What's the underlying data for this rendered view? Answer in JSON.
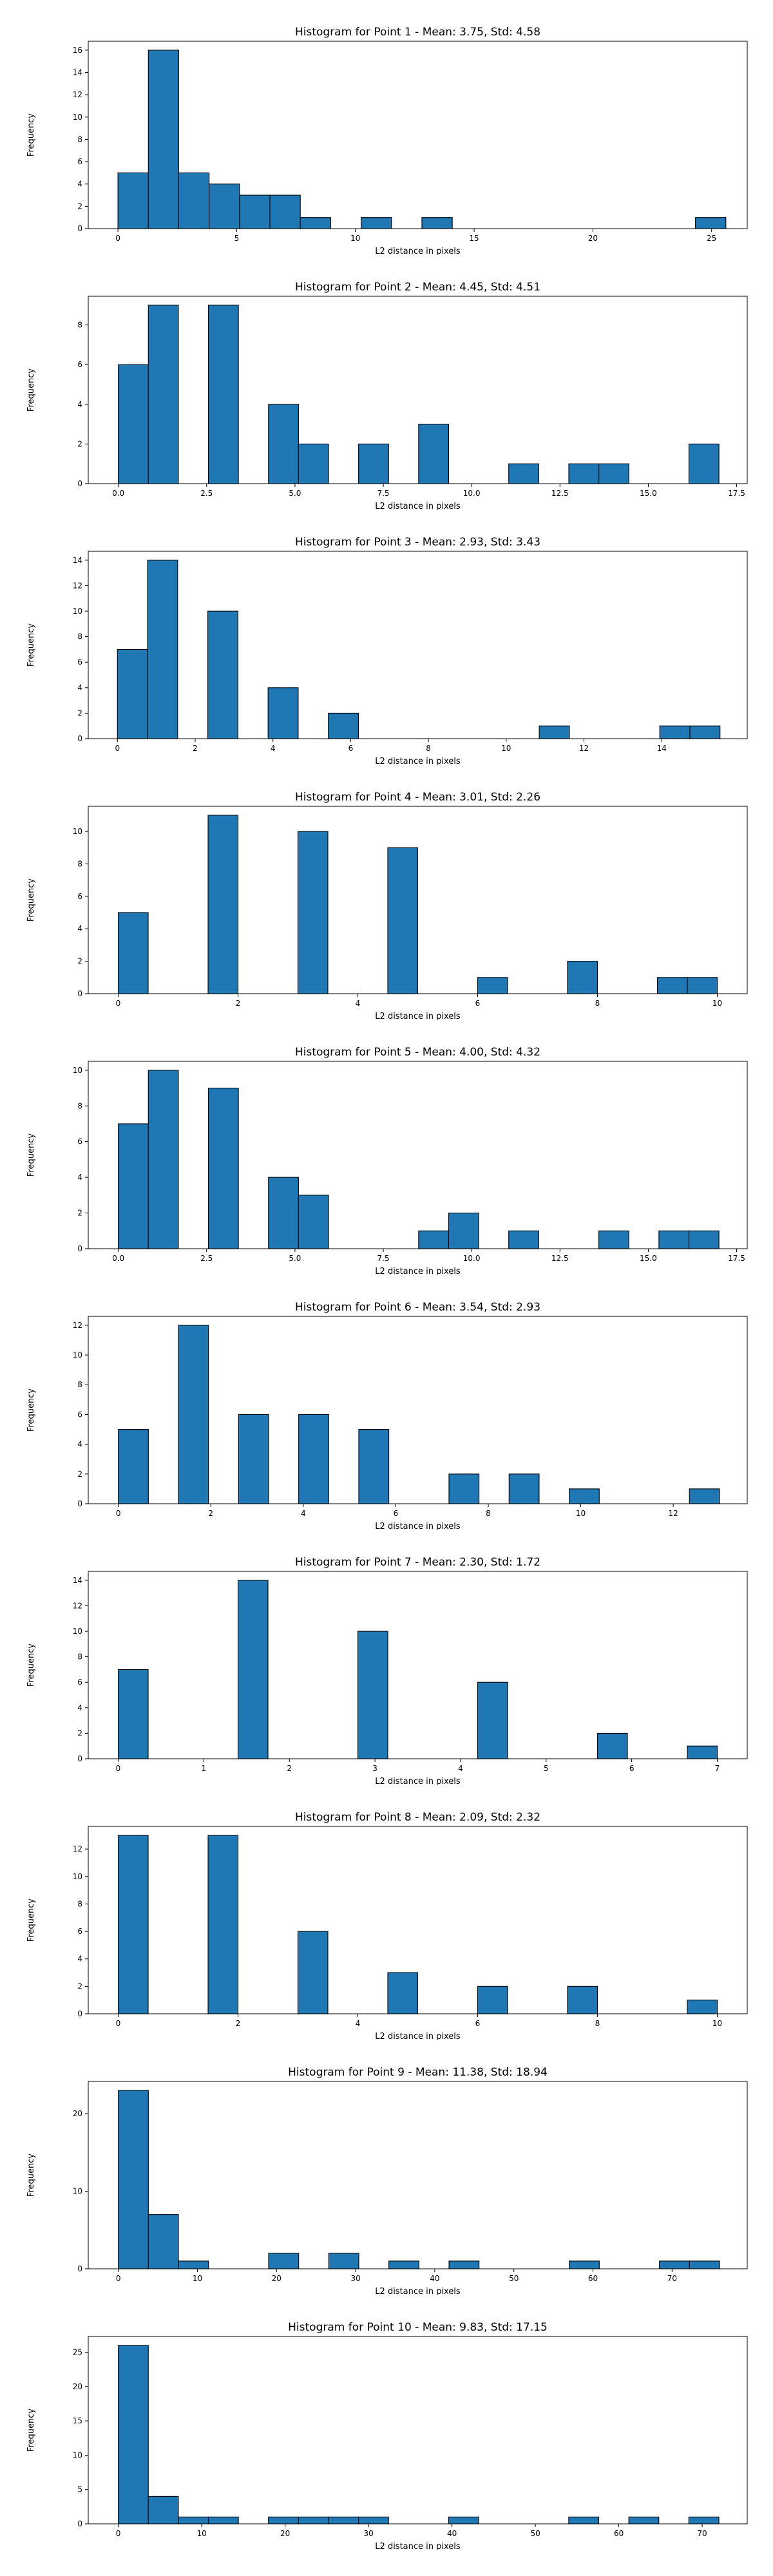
{
  "colors": {
    "bar": "#1f77b4",
    "edge": "#000000"
  },
  "chart_data": [
    {
      "type": "bar",
      "title": "Histogram for Point 1 - Mean: 3.75, Std: 4.58",
      "xlabel": "L2 distance in pixels",
      "ylabel": "Frequency",
      "xlim": [
        -1.25,
        26.5
      ],
      "ylim": [
        0,
        16.8
      ],
      "xticks": [
        0,
        5,
        10,
        15,
        20,
        25
      ],
      "xtick_labels": [
        "0",
        "5",
        "10",
        "15",
        "20",
        "25"
      ],
      "yticks": [
        0,
        2,
        4,
        6,
        8,
        10,
        12,
        14,
        16
      ],
      "bin_edges": [
        0.0,
        1.28,
        2.56,
        3.84,
        5.12,
        6.4,
        7.68,
        8.96,
        10.24,
        11.52,
        12.8,
        14.08,
        15.36,
        16.64,
        17.92,
        19.2,
        20.48,
        21.76,
        23.04,
        24.32,
        25.6
      ],
      "values": [
        5,
        16,
        5,
        4,
        3,
        3,
        1,
        0,
        1,
        0,
        1,
        0,
        0,
        0,
        0,
        0,
        0,
        0,
        0,
        1
      ]
    },
    {
      "type": "bar",
      "title": "Histogram for Point 2 - Mean: 4.45, Std: 4.51",
      "xlabel": "L2 distance in pixels",
      "ylabel": "Frequency",
      "xlim": [
        -0.85,
        17.8
      ],
      "ylim": [
        0,
        9.45
      ],
      "xticks": [
        0,
        2.5,
        5,
        7.5,
        10,
        12.5,
        15,
        17.5
      ],
      "xtick_labels": [
        "0.0",
        "2.5",
        "5.0",
        "7.5",
        "10.0",
        "12.5",
        "15.0",
        "17.5"
      ],
      "yticks": [
        0,
        2,
        4,
        6,
        8
      ],
      "bin_edges": [
        0.0,
        0.85,
        1.7,
        2.55,
        3.4,
        4.25,
        5.1,
        5.95,
        6.8,
        7.65,
        8.5,
        9.35,
        10.2,
        11.05,
        11.9,
        12.75,
        13.6,
        14.45,
        15.3,
        16.15,
        17.0
      ],
      "values": [
        6,
        9,
        0,
        9,
        0,
        4,
        2,
        0,
        2,
        0,
        3,
        0,
        0,
        1,
        0,
        1,
        1,
        0,
        0,
        2
      ]
    },
    {
      "type": "bar",
      "title": "Histogram for Point 3 - Mean: 2.93, Std: 3.43",
      "xlabel": "L2 distance in pixels",
      "ylabel": "Frequency",
      "xlim": [
        -0.75,
        16.2
      ],
      "ylim": [
        0,
        14.7
      ],
      "xticks": [
        0,
        2,
        4,
        6,
        8,
        10,
        12,
        14
      ],
      "xtick_labels": [
        "0",
        "2",
        "4",
        "6",
        "8",
        "10",
        "12",
        "14"
      ],
      "yticks": [
        0,
        2,
        4,
        6,
        8,
        10,
        12,
        14
      ],
      "bin_edges": [
        0.0,
        0.775,
        1.55,
        2.325,
        3.1,
        3.875,
        4.65,
        5.425,
        6.2,
        6.975,
        7.75,
        8.525,
        9.3,
        10.075,
        10.85,
        11.625,
        12.4,
        13.175,
        13.95,
        14.725,
        15.5
      ],
      "values": [
        7,
        14,
        0,
        10,
        0,
        4,
        0,
        2,
        0,
        0,
        0,
        0,
        0,
        0,
        1,
        0,
        0,
        0,
        1,
        1
      ]
    },
    {
      "type": "bar",
      "title": "Histogram for Point 4 - Mean: 3.01, Std: 2.26",
      "xlabel": "L2 distance in pixels",
      "ylabel": "Frequency",
      "xlim": [
        -0.5,
        10.5
      ],
      "ylim": [
        0,
        11.55
      ],
      "xticks": [
        0,
        2,
        4,
        6,
        8,
        10
      ],
      "xtick_labels": [
        "0",
        "2",
        "4",
        "6",
        "8",
        "10"
      ],
      "yticks": [
        0,
        2,
        4,
        6,
        8,
        10
      ],
      "bin_edges": [
        0.0,
        0.5,
        1.0,
        1.5,
        2.0,
        2.5,
        3.0,
        3.5,
        4.0,
        4.5,
        5.0,
        5.5,
        6.0,
        6.5,
        7.0,
        7.5,
        8.0,
        8.5,
        9.0,
        9.5,
        10.0
      ],
      "values": [
        5,
        0,
        0,
        11,
        0,
        0,
        10,
        0,
        0,
        9,
        0,
        0,
        1,
        0,
        0,
        2,
        0,
        0,
        1,
        1
      ]
    },
    {
      "type": "bar",
      "title": "Histogram for Point 5 - Mean: 4.00, Std: 4.32",
      "xlabel": "L2 distance in pixels",
      "ylabel": "Frequency",
      "xlim": [
        -0.85,
        17.8
      ],
      "ylim": [
        0,
        10.5
      ],
      "xticks": [
        0,
        2.5,
        5,
        7.5,
        10,
        12.5,
        15,
        17.5
      ],
      "xtick_labels": [
        "0.0",
        "2.5",
        "5.0",
        "7.5",
        "10.0",
        "12.5",
        "15.0",
        "17.5"
      ],
      "yticks": [
        0,
        2,
        4,
        6,
        8,
        10
      ],
      "bin_edges": [
        0.0,
        0.85,
        1.7,
        2.55,
        3.4,
        4.25,
        5.1,
        5.95,
        6.8,
        7.65,
        8.5,
        9.35,
        10.2,
        11.05,
        11.9,
        12.75,
        13.6,
        14.45,
        15.3,
        16.15,
        17.0
      ],
      "values": [
        7,
        10,
        0,
        9,
        0,
        4,
        3,
        0,
        0,
        0,
        1,
        2,
        0,
        1,
        0,
        0,
        1,
        0,
        1,
        1
      ]
    },
    {
      "type": "bar",
      "title": "Histogram for Point 6 - Mean: 3.54, Std: 2.93",
      "xlabel": "L2 distance in pixels",
      "ylabel": "Frequency",
      "xlim": [
        -0.65,
        13.6
      ],
      "ylim": [
        0,
        12.6
      ],
      "xticks": [
        0,
        2,
        4,
        6,
        8,
        10,
        12
      ],
      "xtick_labels": [
        "0",
        "2",
        "4",
        "6",
        "8",
        "10",
        "12"
      ],
      "yticks": [
        0,
        2,
        4,
        6,
        8,
        10,
        12
      ],
      "bin_edges": [
        0.0,
        0.65,
        1.3,
        1.95,
        2.6,
        3.25,
        3.9,
        4.55,
        5.2,
        5.85,
        6.5,
        7.15,
        7.8,
        8.45,
        9.1,
        9.75,
        10.4,
        11.05,
        11.7,
        12.35,
        13.0
      ],
      "values": [
        5,
        0,
        12,
        0,
        6,
        0,
        6,
        0,
        5,
        0,
        0,
        2,
        0,
        2,
        0,
        1,
        0,
        0,
        0,
        1
      ]
    },
    {
      "type": "bar",
      "title": "Histogram for Point 7 - Mean: 2.30, Std: 1.72",
      "xlabel": "L2 distance in pixels",
      "ylabel": "Frequency",
      "xlim": [
        -0.35,
        7.35
      ],
      "ylim": [
        0,
        14.7
      ],
      "xticks": [
        0,
        1,
        2,
        3,
        4,
        5,
        6,
        7
      ],
      "xtick_labels": [
        "0",
        "1",
        "2",
        "3",
        "4",
        "5",
        "6",
        "7"
      ],
      "yticks": [
        0,
        2,
        4,
        6,
        8,
        10,
        12,
        14
      ],
      "bin_edges": [
        0.0,
        0.35,
        0.7,
        1.05,
        1.4,
        1.75,
        2.1,
        2.45,
        2.8,
        3.15,
        3.5,
        3.85,
        4.2,
        4.55,
        4.9,
        5.25,
        5.6,
        5.95,
        6.3,
        6.65,
        7.0
      ],
      "values": [
        7,
        0,
        0,
        0,
        14,
        0,
        0,
        0,
        10,
        0,
        0,
        0,
        6,
        0,
        0,
        0,
        2,
        0,
        0,
        1
      ]
    },
    {
      "type": "bar",
      "title": "Histogram for Point 8 - Mean: 2.09, Std: 2.32",
      "xlabel": "L2 distance in pixels",
      "ylabel": "Frequency",
      "xlim": [
        -0.5,
        10.5
      ],
      "ylim": [
        0,
        13.65
      ],
      "xticks": [
        0,
        2,
        4,
        6,
        8,
        10
      ],
      "xtick_labels": [
        "0",
        "2",
        "4",
        "6",
        "8",
        "10"
      ],
      "yticks": [
        0,
        2,
        4,
        6,
        8,
        10,
        12
      ],
      "bin_edges": [
        0.0,
        0.5,
        1.0,
        1.5,
        2.0,
        2.5,
        3.0,
        3.5,
        4.0,
        4.5,
        5.0,
        5.5,
        6.0,
        6.5,
        7.0,
        7.5,
        8.0,
        8.5,
        9.0,
        9.5,
        10.0
      ],
      "values": [
        13,
        0,
        0,
        13,
        0,
        0,
        6,
        0,
        0,
        3,
        0,
        0,
        2,
        0,
        0,
        2,
        0,
        0,
        0,
        1
      ]
    },
    {
      "type": "bar",
      "title": "Histogram for Point 9 - Mean: 11.38, Std: 18.94",
      "xlabel": "L2 distance in pixels",
      "ylabel": "Frequency",
      "xlim": [
        -3.8,
        79.5
      ],
      "ylim": [
        0,
        24.15
      ],
      "xticks": [
        0,
        10,
        20,
        30,
        40,
        50,
        60,
        70
      ],
      "xtick_labels": [
        "0",
        "10",
        "20",
        "30",
        "40",
        "50",
        "60",
        "70"
      ],
      "yticks": [
        0,
        10,
        20
      ],
      "bin_edges": [
        0.0,
        3.8,
        7.6,
        11.4,
        15.2,
        19.0,
        22.8,
        26.6,
        30.4,
        34.2,
        38.0,
        41.8,
        45.6,
        49.4,
        53.2,
        57.0,
        60.8,
        64.6,
        68.4,
        72.2,
        76.0
      ],
      "values": [
        23,
        7,
        1,
        0,
        0,
        2,
        0,
        2,
        0,
        1,
        0,
        1,
        0,
        0,
        0,
        1,
        0,
        0,
        1,
        1
      ]
    },
    {
      "type": "bar",
      "title": "Histogram for Point 10 - Mean: 9.83, Std: 17.15",
      "xlabel": "L2 distance in pixels",
      "ylabel": "Frequency",
      "xlim": [
        -3.6,
        75.4
      ],
      "ylim": [
        0,
        27.3
      ],
      "xticks": [
        0,
        10,
        20,
        30,
        40,
        50,
        60,
        70
      ],
      "xtick_labels": [
        "0",
        "10",
        "20",
        "30",
        "40",
        "50",
        "60",
        "70"
      ],
      "yticks": [
        0,
        5,
        10,
        15,
        20,
        25
      ],
      "bin_edges": [
        0.0,
        3.6,
        7.2,
        10.8,
        14.4,
        18.0,
        21.6,
        25.2,
        28.8,
        32.4,
        36.0,
        39.6,
        43.2,
        46.8,
        50.4,
        54.0,
        57.6,
        61.2,
        64.8,
        68.4,
        72.0
      ],
      "values": [
        26,
        4,
        1,
        1,
        0,
        1,
        1,
        1,
        1,
        0,
        0,
        1,
        0,
        0,
        0,
        1,
        0,
        1,
        0,
        1
      ]
    }
  ]
}
